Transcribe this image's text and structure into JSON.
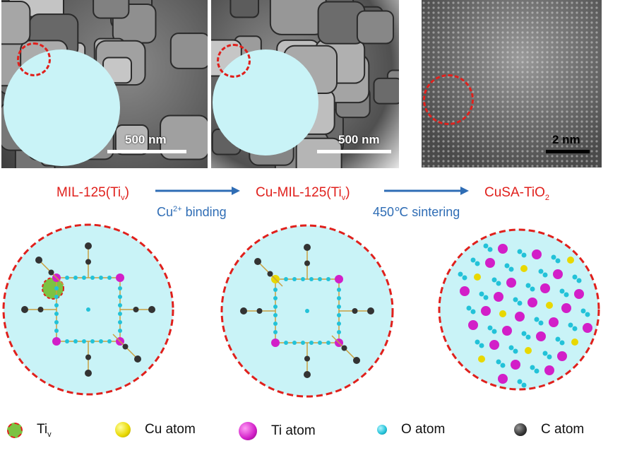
{
  "panels": [
    {
      "scale_label": "500 nm"
    },
    {
      "scale_label": "500 nm"
    },
    {
      "scale_label": "2 nm"
    }
  ],
  "stages": [
    {
      "label": "MIL-125(Ti",
      "sub": "v",
      "suffix": ")"
    },
    {
      "label": "Cu-MIL-125(Ti",
      "sub": "v",
      "suffix": ")"
    },
    {
      "label": "CuSA-TiO",
      "sub": "2",
      "suffix": ""
    }
  ],
  "arrows": [
    {
      "label_pre": "Cu",
      "label_sup": "2+",
      "label_post": " binding"
    },
    {
      "label_pre": "450℃ sintering",
      "label_sup": "",
      "label_post": ""
    }
  ],
  "legend": [
    {
      "label": "Ti",
      "sub": "v",
      "color": "#7cc242",
      "icon": "ti-vacancy-icon"
    },
    {
      "label": "Cu atom",
      "sub": "",
      "color": "#f2e61a",
      "icon": "cu-atom-icon"
    },
    {
      "label": "Ti atom",
      "sub": "",
      "color": "#d21fc8",
      "icon": "ti-atom-icon"
    },
    {
      "label": "O atom",
      "sub": "",
      "color": "#22c2d8",
      "icon": "o-atom-icon"
    },
    {
      "label": "C atom",
      "sub": "",
      "color": "#333333",
      "icon": "c-atom-icon"
    }
  ],
  "colors": {
    "stage_label": "#e0201c",
    "arrow": "#2f6db5",
    "circle_fill": "#c9f3f7",
    "circle_border": "#e0201c"
  }
}
